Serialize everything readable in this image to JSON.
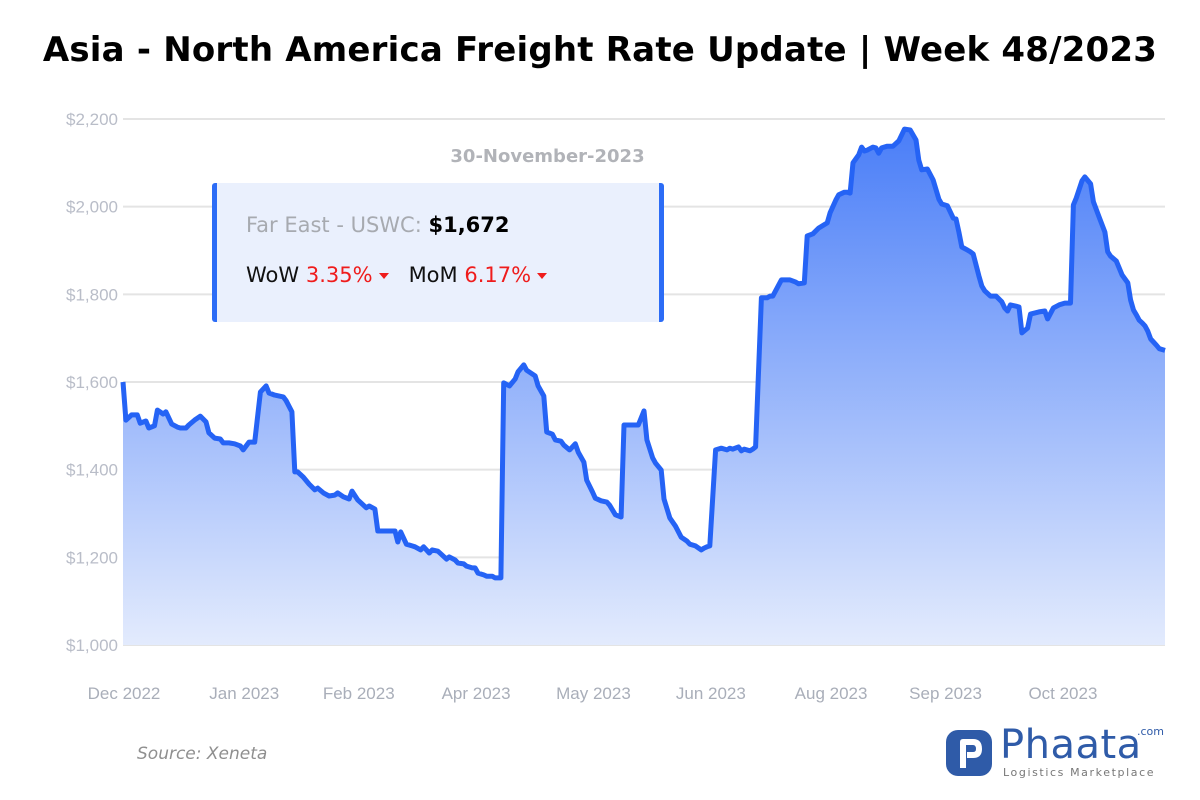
{
  "title": "Asia - North America Freight Rate Update | Week 48/2023",
  "tooltip": {
    "date": "30-November-2023",
    "route_label": "Far East - USWC:",
    "route_value": "$1,672",
    "wow_label": "WoW",
    "wow_value": "3.35%",
    "wow_direction": "down",
    "mom_label": "MoM",
    "mom_value": "6.17%",
    "mom_direction": "down"
  },
  "source": "Source: Xeneta",
  "logo": {
    "name": "Phaata",
    "domain": ".com",
    "tagline": "Logistics Marketplace"
  },
  "colors": {
    "line": "#2563f5",
    "fill_top": "#4a7ef8",
    "fill_bottom": "#e3ebfd",
    "negative": "#ef1c1c",
    "brand": "#2f5ba8"
  },
  "chart_data": {
    "type": "area",
    "title": "",
    "xlabel": "",
    "ylabel": "",
    "xlim": [
      "2022-12-01",
      "2023-11-30"
    ],
    "ylim": [
      1000,
      2200
    ],
    "grid": true,
    "yticks": [
      {
        "value": 2200,
        "label": "$2,200"
      },
      {
        "value": 2000,
        "label": "$2,000"
      },
      {
        "value": 1800,
        "label": "$1,800"
      },
      {
        "value": 1600,
        "label": "$1,600"
      },
      {
        "value": 1400,
        "label": "$1,400"
      },
      {
        "value": 1200,
        "label": "$1,200"
      },
      {
        "value": 1000,
        "label": "$1,000"
      }
    ],
    "xticks": [
      {
        "date": "2022-12-01",
        "label": "Dec 2022"
      },
      {
        "date": "2023-01-12",
        "label": "Jan 2023"
      },
      {
        "date": "2023-02-21",
        "label": "Feb 2023"
      },
      {
        "date": "2023-04-03",
        "label": "Apr 2023"
      },
      {
        "date": "2023-05-14",
        "label": "May 2023"
      },
      {
        "date": "2023-06-24",
        "label": "Jun 2023"
      },
      {
        "date": "2023-08-05",
        "label": "Aug 2023"
      },
      {
        "date": "2023-09-14",
        "label": "Sep 2023"
      },
      {
        "date": "2023-10-25",
        "label": "Oct 2023"
      }
    ],
    "series": [
      {
        "points": [
          [
            "2022-12-01",
            1600
          ],
          [
            "2022-12-02",
            1513
          ],
          [
            "2022-12-04",
            1525
          ],
          [
            "2022-12-06",
            1525
          ],
          [
            "2022-12-07",
            1506
          ],
          [
            "2022-12-09",
            1511
          ],
          [
            "2022-12-10",
            1495
          ],
          [
            "2022-12-12",
            1500
          ],
          [
            "2022-12-13",
            1536
          ],
          [
            "2022-12-15",
            1527
          ],
          [
            "2022-12-16",
            1532
          ],
          [
            "2022-12-18",
            1504
          ],
          [
            "2022-12-20",
            1497
          ],
          [
            "2022-12-21",
            1495
          ],
          [
            "2022-12-23",
            1495
          ],
          [
            "2022-12-24",
            1502
          ],
          [
            "2022-12-26",
            1513
          ],
          [
            "2022-12-28",
            1522
          ],
          [
            "2022-12-30",
            1509
          ],
          [
            "2022-12-31",
            1484
          ],
          [
            "2023-01-02",
            1472
          ],
          [
            "2023-01-04",
            1470
          ],
          [
            "2023-01-05",
            1461
          ],
          [
            "2023-01-07",
            1461
          ],
          [
            "2023-01-09",
            1459
          ],
          [
            "2023-01-11",
            1454
          ],
          [
            "2023-01-12",
            1445
          ],
          [
            "2023-01-14",
            1463
          ],
          [
            "2023-01-16",
            1463
          ],
          [
            "2023-01-18",
            1577
          ],
          [
            "2023-01-20",
            1591
          ],
          [
            "2023-01-21",
            1575
          ],
          [
            "2023-01-23",
            1570
          ],
          [
            "2023-01-26",
            1566
          ],
          [
            "2023-01-27",
            1557
          ],
          [
            "2023-01-29",
            1532
          ],
          [
            "2023-01-30",
            1395
          ],
          [
            "2023-01-31",
            1395
          ],
          [
            "2023-02-02",
            1383
          ],
          [
            "2023-02-04",
            1367
          ],
          [
            "2023-02-06",
            1354
          ],
          [
            "2023-02-07",
            1358
          ],
          [
            "2023-02-09",
            1347
          ],
          [
            "2023-02-11",
            1340
          ],
          [
            "2023-02-13",
            1342
          ],
          [
            "2023-02-14",
            1347
          ],
          [
            "2023-02-16",
            1338
          ],
          [
            "2023-02-18",
            1333
          ],
          [
            "2023-02-19",
            1351
          ],
          [
            "2023-02-21",
            1331
          ],
          [
            "2023-02-23",
            1319
          ],
          [
            "2023-02-24",
            1313
          ],
          [
            "2023-02-25",
            1317
          ],
          [
            "2023-02-27",
            1310
          ],
          [
            "2023-02-28",
            1260
          ],
          [
            "2023-03-04",
            1260
          ],
          [
            "2023-03-06",
            1260
          ],
          [
            "2023-03-07",
            1235
          ],
          [
            "2023-03-08",
            1258
          ],
          [
            "2023-03-10",
            1230
          ],
          [
            "2023-03-12",
            1226
          ],
          [
            "2023-03-13",
            1224
          ],
          [
            "2023-03-15",
            1217
          ],
          [
            "2023-03-16",
            1224
          ],
          [
            "2023-03-18",
            1210
          ],
          [
            "2023-03-19",
            1217
          ],
          [
            "2023-03-21",
            1214
          ],
          [
            "2023-03-22",
            1208
          ],
          [
            "2023-03-24",
            1196
          ],
          [
            "2023-03-25",
            1201
          ],
          [
            "2023-03-27",
            1194
          ],
          [
            "2023-03-28",
            1187
          ],
          [
            "2023-03-30",
            1185
          ],
          [
            "2023-03-31",
            1180
          ],
          [
            "2023-04-02",
            1176
          ],
          [
            "2023-04-03",
            1176
          ],
          [
            "2023-04-04",
            1164
          ],
          [
            "2023-04-06",
            1160
          ],
          [
            "2023-04-07",
            1157
          ],
          [
            "2023-04-09",
            1157
          ],
          [
            "2023-04-10",
            1153
          ],
          [
            "2023-04-12",
            1153
          ],
          [
            "2023-04-13",
            1598
          ],
          [
            "2023-04-15",
            1591
          ],
          [
            "2023-04-17",
            1607
          ],
          [
            "2023-04-18",
            1623
          ],
          [
            "2023-04-20",
            1639
          ],
          [
            "2023-04-21",
            1627
          ],
          [
            "2023-04-24",
            1614
          ],
          [
            "2023-04-25",
            1591
          ],
          [
            "2023-04-27",
            1568
          ],
          [
            "2023-04-28",
            1486
          ],
          [
            "2023-04-30",
            1481
          ],
          [
            "2023-05-01",
            1468
          ],
          [
            "2023-05-03",
            1465
          ],
          [
            "2023-05-04",
            1456
          ],
          [
            "2023-05-06",
            1445
          ],
          [
            "2023-05-07",
            1452
          ],
          [
            "2023-05-08",
            1459
          ],
          [
            "2023-05-09",
            1440
          ],
          [
            "2023-05-11",
            1417
          ],
          [
            "2023-05-12",
            1376
          ],
          [
            "2023-05-14",
            1349
          ],
          [
            "2023-05-15",
            1335
          ],
          [
            "2023-05-17",
            1329
          ],
          [
            "2023-05-19",
            1326
          ],
          [
            "2023-05-20",
            1319
          ],
          [
            "2023-05-22",
            1297
          ],
          [
            "2023-05-24",
            1292
          ],
          [
            "2023-05-25",
            1502
          ],
          [
            "2023-05-28",
            1502
          ],
          [
            "2023-05-30",
            1502
          ],
          [
            "2023-06-01",
            1534
          ],
          [
            "2023-06-02",
            1468
          ],
          [
            "2023-06-04",
            1427
          ],
          [
            "2023-06-05",
            1415
          ],
          [
            "2023-06-07",
            1399
          ],
          [
            "2023-06-08",
            1333
          ],
          [
            "2023-06-10",
            1290
          ],
          [
            "2023-06-12",
            1271
          ],
          [
            "2023-06-14",
            1246
          ],
          [
            "2023-06-16",
            1237
          ],
          [
            "2023-06-17",
            1230
          ],
          [
            "2023-06-19",
            1226
          ],
          [
            "2023-06-21",
            1217
          ],
          [
            "2023-06-22",
            1221
          ],
          [
            "2023-06-23",
            1224
          ],
          [
            "2023-06-24",
            1226
          ],
          [
            "2023-06-26",
            1445
          ],
          [
            "2023-06-28",
            1449
          ],
          [
            "2023-06-30",
            1445
          ],
          [
            "2023-07-01",
            1449
          ],
          [
            "2023-07-02",
            1447
          ],
          [
            "2023-07-04",
            1452
          ],
          [
            "2023-07-05",
            1443
          ],
          [
            "2023-07-06",
            1447
          ],
          [
            "2023-07-08",
            1443
          ],
          [
            "2023-07-09",
            1447
          ],
          [
            "2023-07-10",
            1452
          ],
          [
            "2023-07-12",
            1792
          ],
          [
            "2023-07-14",
            1792
          ],
          [
            "2023-07-15",
            1796
          ],
          [
            "2023-07-16",
            1796
          ],
          [
            "2023-07-19",
            1833
          ],
          [
            "2023-07-22",
            1833
          ],
          [
            "2023-07-24",
            1828
          ],
          [
            "2023-07-25",
            1824
          ],
          [
            "2023-07-27",
            1826
          ],
          [
            "2023-07-28",
            1933
          ],
          [
            "2023-07-30",
            1938
          ],
          [
            "2023-08-01",
            1951
          ],
          [
            "2023-08-04",
            1963
          ],
          [
            "2023-08-05",
            1986
          ],
          [
            "2023-08-07",
            2015
          ],
          [
            "2023-08-08",
            2027
          ],
          [
            "2023-08-10",
            2033
          ],
          [
            "2023-08-11",
            2033
          ],
          [
            "2023-08-12",
            2031
          ],
          [
            "2023-08-13",
            2100
          ],
          [
            "2023-08-15",
            2118
          ],
          [
            "2023-08-16",
            2136
          ],
          [
            "2023-08-17",
            2127
          ],
          [
            "2023-08-18",
            2129
          ],
          [
            "2023-08-20",
            2136
          ],
          [
            "2023-08-21",
            2134
          ],
          [
            "2023-08-22",
            2122
          ],
          [
            "2023-08-23",
            2134
          ],
          [
            "2023-08-25",
            2138
          ],
          [
            "2023-08-27",
            2138
          ],
          [
            "2023-08-29",
            2150
          ],
          [
            "2023-08-31",
            2177
          ],
          [
            "2023-09-02",
            2175
          ],
          [
            "2023-09-04",
            2152
          ],
          [
            "2023-09-05",
            2106
          ],
          [
            "2023-09-06",
            2084
          ],
          [
            "2023-09-08",
            2086
          ],
          [
            "2023-09-10",
            2061
          ],
          [
            "2023-09-12",
            2017
          ],
          [
            "2023-09-13",
            2006
          ],
          [
            "2023-09-15",
            2002
          ],
          [
            "2023-09-17",
            1974
          ],
          [
            "2023-09-18",
            1972
          ],
          [
            "2023-09-19",
            1942
          ],
          [
            "2023-09-20",
            1908
          ],
          [
            "2023-09-22",
            1901
          ],
          [
            "2023-09-23",
            1897
          ],
          [
            "2023-09-24",
            1892
          ],
          [
            "2023-09-26",
            1842
          ],
          [
            "2023-09-27",
            1819
          ],
          [
            "2023-09-28",
            1808
          ],
          [
            "2023-09-30",
            1796
          ],
          [
            "2023-10-02",
            1796
          ],
          [
            "2023-10-04",
            1783
          ],
          [
            "2023-10-05",
            1769
          ],
          [
            "2023-10-06",
            1762
          ],
          [
            "2023-10-07",
            1776
          ],
          [
            "2023-10-09",
            1773
          ],
          [
            "2023-10-10",
            1771
          ],
          [
            "2023-10-11",
            1712
          ],
          [
            "2023-10-13",
            1723
          ],
          [
            "2023-10-14",
            1755
          ],
          [
            "2023-10-17",
            1760
          ],
          [
            "2023-10-19",
            1762
          ],
          [
            "2023-10-20",
            1744
          ],
          [
            "2023-10-22",
            1769
          ],
          [
            "2023-10-24",
            1776
          ],
          [
            "2023-10-25",
            1778
          ],
          [
            "2023-10-26",
            1780
          ],
          [
            "2023-10-28",
            1780
          ],
          [
            "2023-10-29",
            2004
          ],
          [
            "2023-10-30",
            2020
          ],
          [
            "2023-11-01",
            2059
          ],
          [
            "2023-11-02",
            2068
          ],
          [
            "2023-11-04",
            2052
          ],
          [
            "2023-11-05",
            2011
          ],
          [
            "2023-11-07",
            1976
          ],
          [
            "2023-11-09",
            1942
          ],
          [
            "2023-11-10",
            1897
          ],
          [
            "2023-11-11",
            1887
          ],
          [
            "2023-11-13",
            1876
          ],
          [
            "2023-11-14",
            1860
          ],
          [
            "2023-11-15",
            1844
          ],
          [
            "2023-11-17",
            1826
          ],
          [
            "2023-11-18",
            1787
          ],
          [
            "2023-11-19",
            1764
          ],
          [
            "2023-11-20",
            1753
          ],
          [
            "2023-11-21",
            1741
          ],
          [
            "2023-11-22",
            1735
          ],
          [
            "2023-11-23",
            1728
          ],
          [
            "2023-11-24",
            1716
          ],
          [
            "2023-11-25",
            1698
          ],
          [
            "2023-11-27",
            1684
          ],
          [
            "2023-11-28",
            1676
          ],
          [
            "2023-11-30",
            1672
          ]
        ]
      }
    ]
  }
}
